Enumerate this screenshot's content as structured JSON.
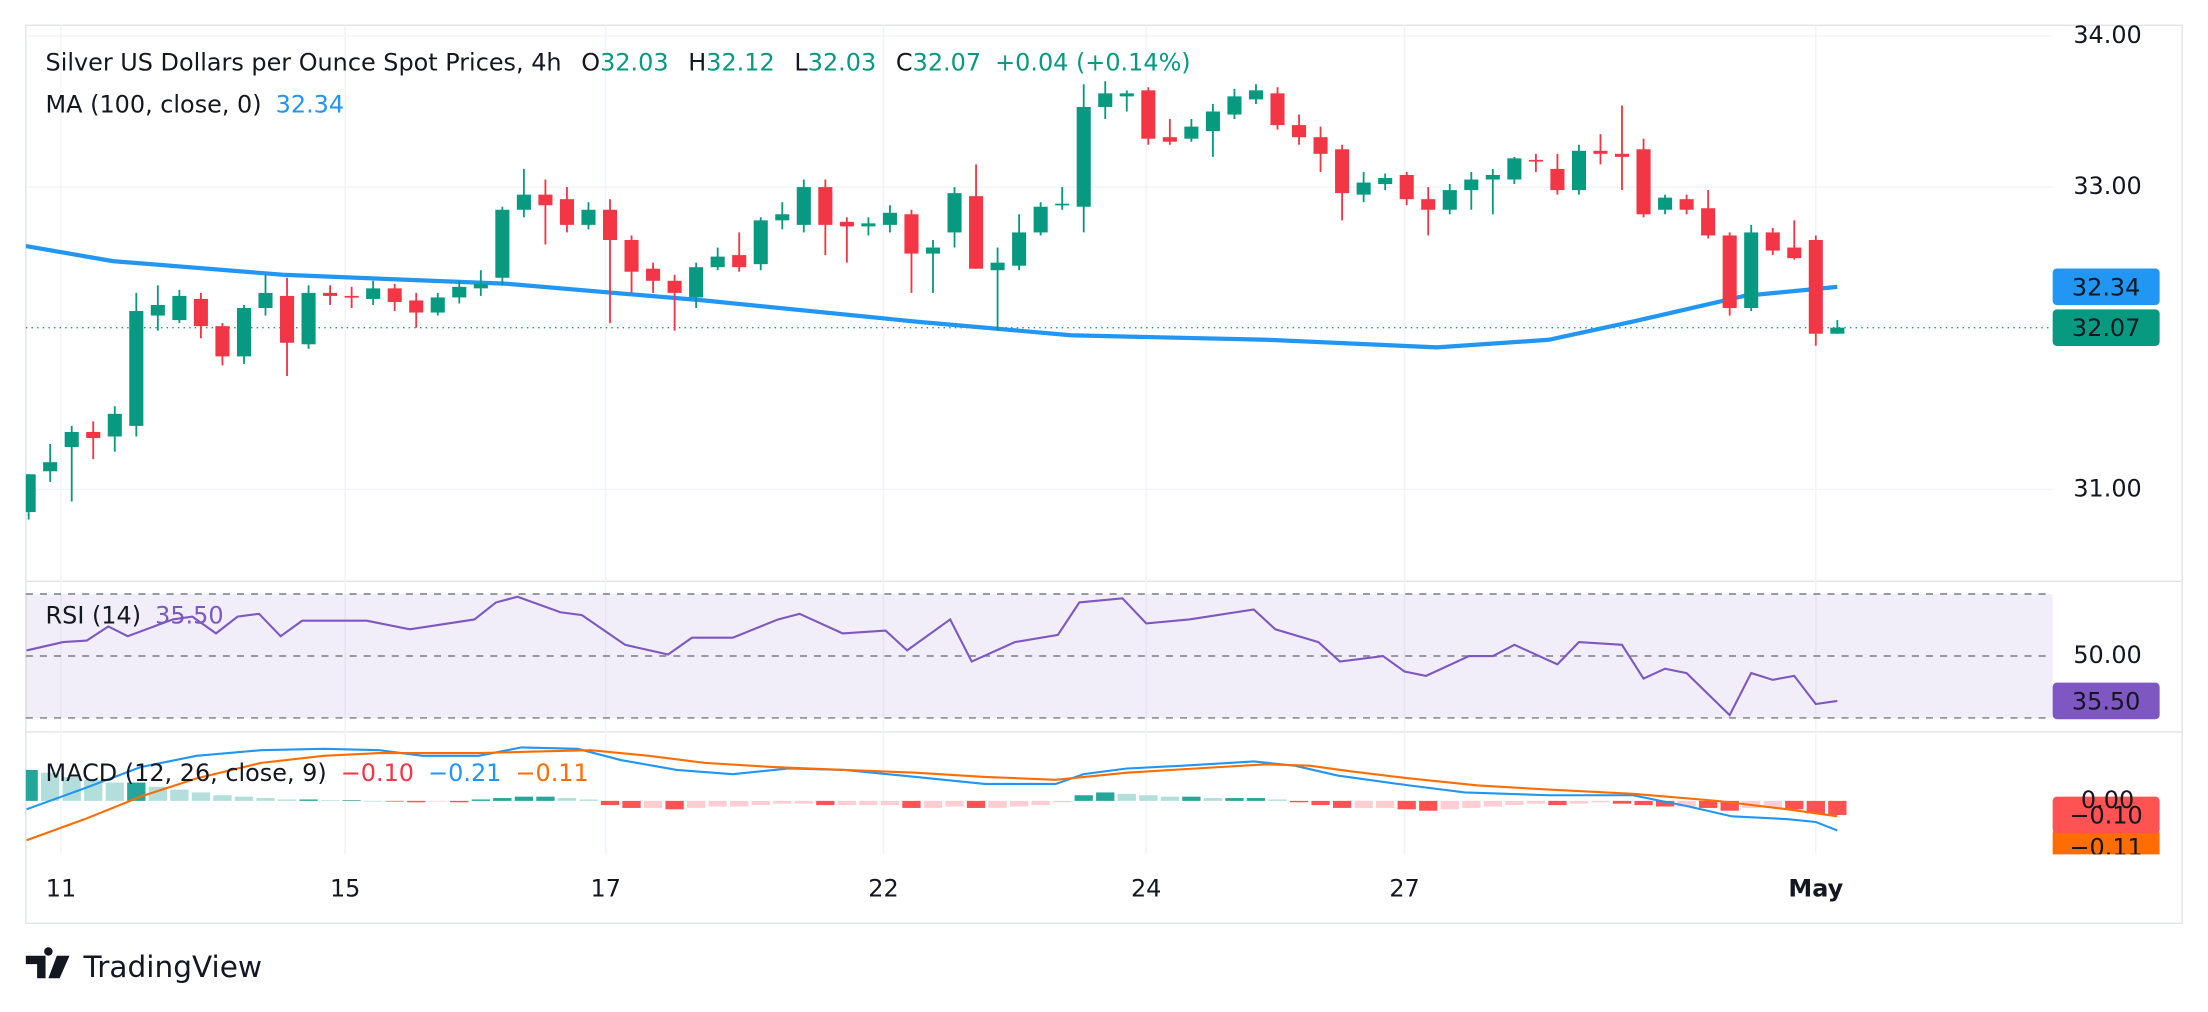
{
  "chart_data": {
    "type": "candlestick",
    "title": "Silver US Dollars per Ounce Spot Prices, 4h",
    "ohlc": [
      {
        "key": "O",
        "value": 32.03
      },
      {
        "key": "H",
        "value": 32.12
      },
      {
        "key": "L",
        "value": 32.03
      },
      {
        "key": "C",
        "value": 32.07
      }
    ],
    "change_label": "+0.04 (+0.14%)",
    "up_color": "#089981",
    "down_color": "#f23645",
    "open": [
      30.85,
      31.12,
      31.28,
      31.38,
      31.35,
      31.42,
      32.15,
      32.12,
      32.26,
      32.08,
      31.88,
      32.2,
      32.28,
      31.96,
      32.3,
      32.28,
      32.26,
      32.33,
      32.25,
      32.17,
      32.27,
      32.33,
      32.4,
      32.85,
      32.95,
      32.92,
      32.75,
      32.85,
      32.65,
      32.46,
      32.38,
      32.27,
      32.47,
      32.55,
      32.49,
      32.78,
      32.75,
      33.0,
      32.77,
      32.74,
      32.75,
      32.82,
      32.56,
      32.7,
      32.94,
      32.45,
      32.48,
      32.7,
      32.88,
      32.87,
      33.53,
      33.6,
      33.64,
      33.33,
      33.32,
      33.37,
      33.48,
      33.58,
      33.62,
      33.41,
      33.33,
      33.25,
      32.95,
      33.02,
      33.08,
      32.92,
      32.85,
      32.98,
      33.05,
      33.05,
      33.18,
      33.12,
      32.98,
      33.24,
      33.22,
      33.25,
      32.85,
      32.92,
      32.86,
      32.68,
      32.2,
      32.7,
      32.6,
      32.65,
      32.03
    ],
    "high": [
      31.1,
      31.3,
      31.42,
      31.45,
      31.55,
      32.3,
      32.35,
      32.32,
      32.3,
      32.1,
      32.22,
      32.42,
      32.4,
      32.35,
      32.35,
      32.34,
      32.38,
      32.36,
      32.3,
      32.3,
      32.38,
      32.45,
      32.87,
      33.12,
      33.05,
      33.0,
      32.9,
      32.92,
      32.68,
      32.5,
      32.42,
      32.5,
      32.6,
      32.7,
      32.8,
      32.9,
      33.05,
      33.05,
      32.8,
      32.8,
      32.88,
      32.85,
      32.65,
      33.0,
      33.15,
      32.6,
      32.82,
      32.9,
      33.0,
      33.68,
      33.7,
      33.64,
      33.66,
      33.45,
      33.45,
      33.55,
      33.65,
      33.68,
      33.66,
      33.48,
      33.4,
      33.28,
      33.1,
      33.09,
      33.1,
      33.0,
      33.02,
      33.1,
      33.12,
      33.2,
      33.22,
      33.22,
      33.28,
      33.35,
      33.54,
      33.32,
      32.95,
      32.95,
      32.98,
      32.7,
      32.75,
      32.73,
      32.78,
      32.68,
      32.12
    ],
    "low": [
      30.8,
      31.05,
      30.92,
      31.2,
      31.25,
      31.35,
      32.05,
      32.1,
      32.0,
      31.82,
      31.83,
      32.15,
      31.75,
      31.93,
      32.22,
      32.2,
      32.22,
      32.18,
      32.07,
      32.15,
      32.23,
      32.28,
      32.35,
      32.8,
      32.62,
      32.7,
      32.72,
      32.1,
      32.3,
      32.3,
      32.05,
      32.2,
      32.45,
      32.44,
      32.45,
      32.72,
      32.7,
      32.55,
      32.5,
      32.68,
      32.7,
      32.3,
      32.3,
      32.6,
      32.46,
      32.05,
      32.45,
      32.68,
      32.85,
      32.7,
      33.45,
      33.5,
      33.28,
      33.28,
      33.3,
      33.2,
      33.45,
      33.55,
      33.38,
      33.28,
      33.1,
      32.78,
      32.9,
      32.98,
      32.88,
      32.68,
      32.82,
      32.85,
      32.82,
      33.02,
      33.1,
      32.95,
      32.95,
      33.15,
      32.98,
      32.8,
      32.82,
      32.82,
      32.66,
      32.15,
      32.18,
      32.55,
      32.52,
      31.95,
      32.03
    ],
    "close": [
      31.1,
      31.18,
      31.38,
      31.34,
      31.5,
      32.18,
      32.22,
      32.28,
      32.08,
      31.88,
      32.2,
      32.3,
      31.97,
      32.3,
      32.28,
      32.27,
      32.33,
      32.24,
      32.17,
      32.27,
      32.34,
      32.36,
      32.85,
      32.95,
      32.88,
      32.75,
      32.85,
      32.65,
      32.44,
      32.38,
      32.3,
      32.47,
      32.54,
      32.47,
      32.78,
      32.82,
      33.0,
      32.75,
      32.74,
      32.76,
      32.83,
      32.56,
      32.6,
      32.96,
      32.46,
      32.5,
      32.7,
      32.87,
      32.89,
      33.53,
      33.62,
      33.62,
      33.32,
      33.3,
      33.4,
      33.5,
      33.6,
      33.64,
      33.41,
      33.33,
      33.22,
      32.96,
      33.03,
      33.06,
      32.92,
      32.85,
      32.98,
      33.05,
      33.08,
      33.19,
      33.17,
      32.98,
      33.24,
      33.22,
      33.2,
      32.82,
      32.93,
      32.85,
      32.68,
      32.2,
      32.7,
      32.58,
      32.53,
      32.03,
      32.07
    ],
    "xlim": [
      -0.13,
      94.0
    ],
    "xticks": [
      {
        "value": 1.5,
        "label": "11"
      },
      {
        "value": 14.7,
        "label": "15"
      },
      {
        "value": 26.8,
        "label": "17"
      },
      {
        "value": 39.7,
        "label": "22"
      },
      {
        "value": 51.9,
        "label": "24"
      },
      {
        "value": 63.9,
        "label": "27"
      },
      {
        "value": 83,
        "label": "May"
      }
    ],
    "ylim": [
      30.42,
      34.07
    ],
    "yticks": [
      {
        "value": 34,
        "label": "34.00"
      },
      {
        "value": 33,
        "label": "33.00"
      },
      {
        "value": 31,
        "label": "31.00"
      }
    ],
    "grid": true,
    "ma": {
      "name": "MA (100, close, 0)",
      "color": "#2196f3",
      "last": 32.34,
      "x": [
        -0.13,
        3.9,
        11.8,
        22.2,
        31.4,
        41.2,
        48.4,
        57.5,
        65.4,
        70.6,
        74.5,
        79.7,
        84
      ],
      "values": [
        32.61,
        32.51,
        32.42,
        32.36,
        32.25,
        32.11,
        32.02,
        31.99,
        31.94,
        31.99,
        32.11,
        32.28,
        32.34
      ]
    },
    "rsi": {
      "name": "RSI (14)",
      "color": "#7e57c2",
      "last": {
        "value": 35.5,
        "label": "35.50"
      },
      "ylim": [
        25.5,
        74.1
      ],
      "yticks": [
        {
          "value": 50,
          "label": "50.00"
        }
      ],
      "levels": [
        70,
        30
      ],
      "x": [
        -0.1,
        1.6,
        2.7,
        3.7,
        4.6,
        6.7,
        7.6,
        8.7,
        9.7,
        10.7,
        11.7,
        12.7,
        15.7,
        17.7,
        20.7,
        21.7,
        22.7,
        24.7,
        25.7,
        27.7,
        29.7,
        30.8,
        32.7,
        34.8,
        35.8,
        37.8,
        39.8,
        40.8,
        42.8,
        43.8,
        45.8,
        47.8,
        48.8,
        50.8,
        51.9,
        53.9,
        56.9,
        57.9,
        59.9,
        60.9,
        62.9,
        63.9,
        64.9,
        66.9,
        68.0,
        69.0,
        71.0,
        72.0,
        74.0,
        75.0,
        76.0,
        77.0,
        79.0,
        80.0,
        81.0,
        82.0,
        83.0,
        84.0
      ],
      "values": [
        51.8,
        54.5,
        55,
        59.5,
        56.4,
        61.8,
        62.7,
        57.3,
        62.7,
        63.6,
        56.4,
        61.4,
        61.4,
        58.6,
        61.8,
        67.3,
        69.1,
        64.1,
        63.2,
        53.6,
        50.5,
        55.9,
        55.9,
        61.8,
        63.6,
        57.3,
        58.2,
        51.8,
        61.8,
        48.2,
        54.5,
        56.8,
        67.3,
        68.6,
        60.5,
        61.8,
        65,
        58.6,
        54.5,
        48.2,
        50,
        45,
        43.6,
        50,
        50,
        53.6,
        47.3,
        54.5,
        53.6,
        42.7,
        45.9,
        44.5,
        30.9,
        44.5,
        42.3,
        43.6,
        34.5,
        35.5
      ]
    },
    "macd": {
      "name": "MACD (12, 26, close, 9)",
      "ylim": [
        -0.38,
        0.47
      ],
      "yticks": [
        {
          "value": 0,
          "label": "0.00"
        }
      ],
      "histogram": {
        "up_color": "#26a69a",
        "up_fade_color": "#b2dfdb",
        "down_color": "#ff5252",
        "down_fade_color": "#ffcdd2",
        "values": [
          0.22,
          0.2,
          0.17,
          0.15,
          0.13,
          0.13,
          0.1,
          0.08,
          0.06,
          0.04,
          0.03,
          0.02,
          0.01,
          0.01,
          0.005,
          0.005,
          0,
          -0.005,
          -0.01,
          -0.005,
          -0.01,
          0.01,
          0.02,
          0.03,
          0.03,
          0.02,
          0.01,
          -0.03,
          -0.05,
          -0.05,
          -0.06,
          -0.05,
          -0.04,
          -0.04,
          -0.03,
          -0.02,
          -0.02,
          -0.03,
          -0.03,
          -0.03,
          -0.03,
          -0.05,
          -0.05,
          -0.04,
          -0.05,
          -0.05,
          -0.04,
          -0.03,
          -0.01,
          0.04,
          0.06,
          0.05,
          0.04,
          0.03,
          0.03,
          0.02,
          0.02,
          0.02,
          0.01,
          -0.01,
          -0.03,
          -0.05,
          -0.05,
          -0.05,
          -0.06,
          -0.07,
          -0.06,
          -0.05,
          -0.04,
          -0.03,
          -0.02,
          -0.03,
          -0.02,
          -0.01,
          -0.02,
          -0.03,
          -0.04,
          -0.04,
          -0.05,
          -0.07,
          -0.05,
          -0.05,
          -0.06,
          -0.09,
          -0.1
        ],
        "last_label": "−0.10"
      },
      "macd_line": {
        "color": "#2196f3",
        "last_label": "−0.21",
        "x": [
          -0.1,
          2.6,
          5.2,
          7.8,
          10.8,
          13.7,
          16.3,
          18.3,
          20.9,
          22.9,
          25.5,
          27.5,
          30.1,
          32.7,
          35.3,
          37.9,
          41.2,
          44.4,
          47.7,
          49.0,
          51.0,
          53.6,
          56.9,
          58.8,
          60.8,
          64.1,
          66.7,
          70.6,
          74.5,
          77.1,
          79.1,
          81.7,
          83.0,
          84
        ],
        "values": [
          -0.06,
          0.09,
          0.24,
          0.32,
          0.36,
          0.37,
          0.36,
          0.32,
          0.32,
          0.38,
          0.37,
          0.29,
          0.22,
          0.19,
          0.23,
          0.22,
          0.17,
          0.12,
          0.12,
          0.19,
          0.23,
          0.25,
          0.28,
          0.25,
          0.18,
          0.11,
          0.06,
          0.04,
          0.04,
          -0.04,
          -0.11,
          -0.13,
          -0.15,
          -0.21
        ]
      },
      "signal_line": {
        "color": "#ff6d00",
        "last_label": "−0.11",
        "x": [
          -0.1,
          2.6,
          5.2,
          7.8,
          10.8,
          13.7,
          16.3,
          18.3,
          20.9,
          23.5,
          26.1,
          28.8,
          31.4,
          34.6,
          37.9,
          41.2,
          44.4,
          47.7,
          51.0,
          54.2,
          57.5,
          59.5,
          61.4,
          64.1,
          67.3,
          70.6,
          74.5,
          78.4,
          81.7,
          84
        ],
        "values": [
          -0.28,
          -0.13,
          0.03,
          0.16,
          0.27,
          0.32,
          0.34,
          0.34,
          0.34,
          0.35,
          0.36,
          0.32,
          0.27,
          0.24,
          0.22,
          0.2,
          0.17,
          0.15,
          0.2,
          0.23,
          0.26,
          0.25,
          0.21,
          0.16,
          0.11,
          0.08,
          0.05,
          0,
          -0.06,
          -0.11
        ]
      }
    },
    "brand": "TradingView"
  }
}
